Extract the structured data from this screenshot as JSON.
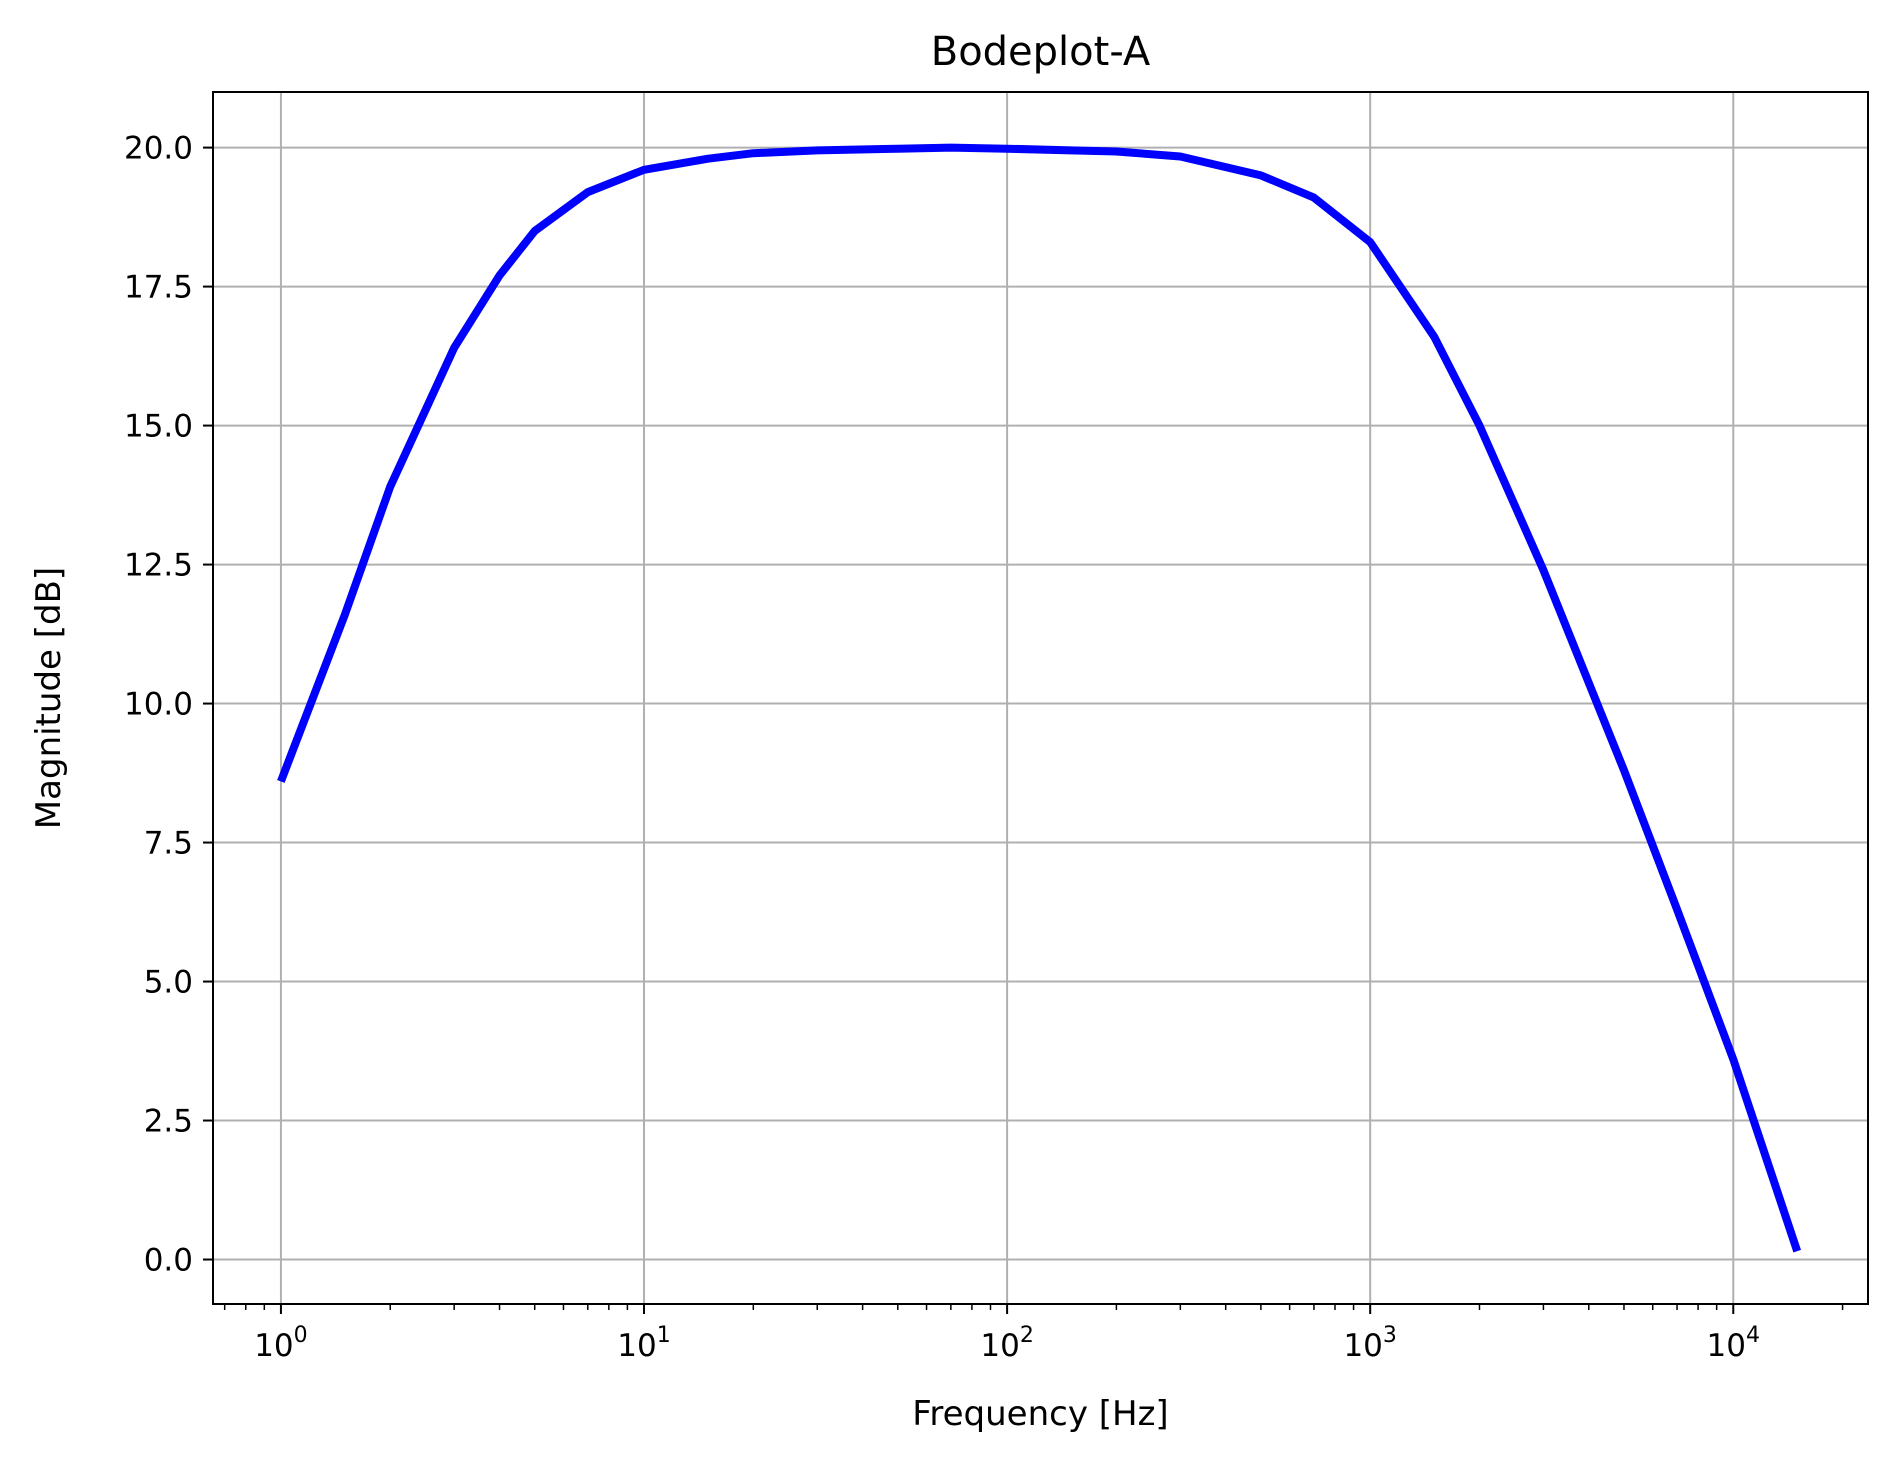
{
  "chart_data": {
    "type": "line",
    "title": "Bodeplot-A",
    "xlabel": "Frequency [Hz]",
    "ylabel": "Magnitude [dB]",
    "xscale": "log",
    "xlim": [
      0.65,
      23500
    ],
    "ylim": [
      -0.8,
      21.0
    ],
    "grid": true,
    "line_color": "#0000ff",
    "x_ticks": [
      {
        "base": "10",
        "exp": "0",
        "value": 1
      },
      {
        "base": "10",
        "exp": "1",
        "value": 10
      },
      {
        "base": "10",
        "exp": "2",
        "value": 100
      },
      {
        "base": "10",
        "exp": "3",
        "value": 1000
      },
      {
        "base": "10",
        "exp": "4",
        "value": 10000
      }
    ],
    "y_ticks": [
      {
        "label": "0.0",
        "value": 0
      },
      {
        "label": "2.5",
        "value": 2.5
      },
      {
        "label": "5.0",
        "value": 5
      },
      {
        "label": "7.5",
        "value": 7.5
      },
      {
        "label": "10.0",
        "value": 10
      },
      {
        "label": "12.5",
        "value": 12.5
      },
      {
        "label": "15.0",
        "value": 15
      },
      {
        "label": "17.5",
        "value": 17.5
      },
      {
        "label": "20.0",
        "value": 20
      }
    ],
    "series": [
      {
        "x": [
          1,
          1.5,
          2,
          3,
          4,
          5,
          7,
          10,
          15,
          20,
          30,
          50,
          70,
          100,
          150,
          200,
          300,
          500,
          700,
          1000,
          1500,
          2000,
          3000,
          5000,
          7000,
          10000,
          15000
        ],
        "y": [
          8.6,
          11.6,
          13.9,
          16.4,
          17.7,
          18.5,
          19.2,
          19.6,
          19.8,
          19.9,
          19.95,
          19.98,
          20.0,
          19.98,
          19.95,
          19.93,
          19.84,
          19.5,
          19.1,
          18.3,
          16.6,
          15.0,
          12.4,
          8.8,
          6.3,
          3.6,
          0.15
        ]
      }
    ]
  }
}
